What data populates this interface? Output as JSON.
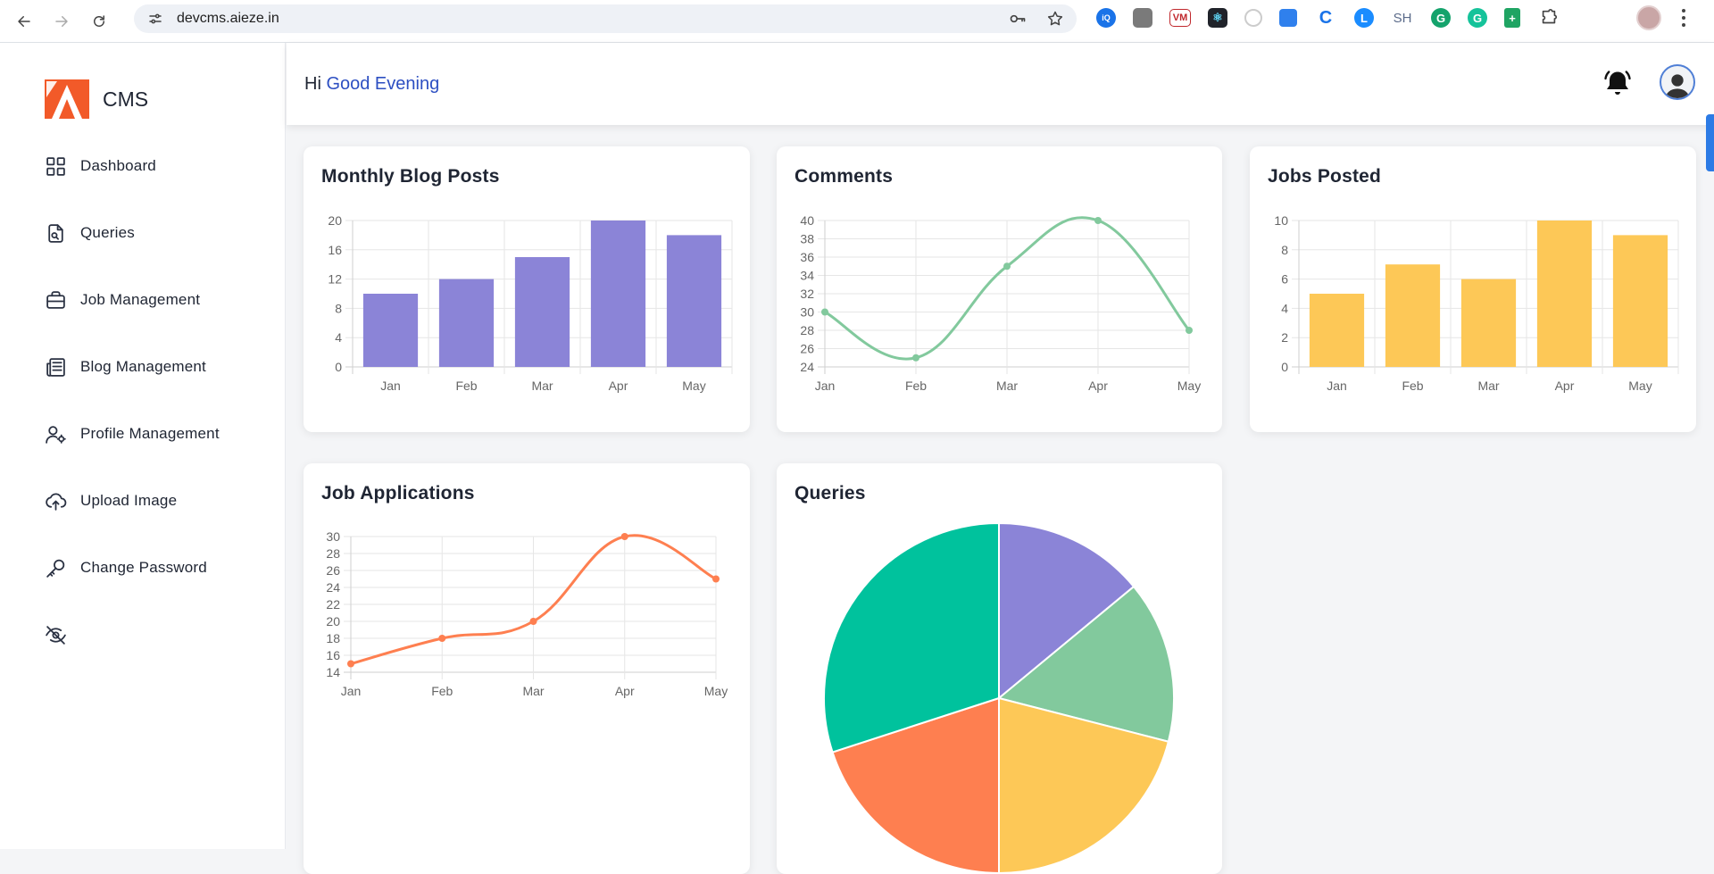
{
  "browser": {
    "url": "devcms.aieze.in",
    "extension_sh_label": "SH"
  },
  "sidebar": {
    "brand": "CMS",
    "items": [
      {
        "label": "Dashboard",
        "icon": "dashboard-grid-icon"
      },
      {
        "label": "Queries",
        "icon": "document-search-icon"
      },
      {
        "label": "Job Management",
        "icon": "briefcase-icon"
      },
      {
        "label": "Blog Management",
        "icon": "newspaper-icon"
      },
      {
        "label": "Profile Management",
        "icon": "user-gear-icon"
      },
      {
        "label": "Upload Image",
        "icon": "cloud-upload-icon"
      },
      {
        "label": "Change Password",
        "icon": "key-icon"
      },
      {
        "label": "",
        "icon": "eye-off-icon"
      }
    ]
  },
  "header": {
    "greeting_prefix": "Hi",
    "greeting": "Good Evening"
  },
  "cards": {
    "blog_posts": {
      "title": "Monthly Blog Posts"
    },
    "comments": {
      "title": "Comments"
    },
    "jobs_posted": {
      "title": "Jobs Posted"
    },
    "job_applications": {
      "title": "Job Applications"
    },
    "queries": {
      "title": "Queries"
    }
  },
  "colors": {
    "purple": "#8b84d7",
    "green": "#82c99d",
    "yellow": "#fdc857",
    "orange": "#fe7f50",
    "teal": "#00c29d",
    "accent_blue": "#2d4fc2"
  },
  "chart_data": [
    {
      "id": "blog_posts",
      "type": "bar",
      "title": "Monthly Blog Posts",
      "categories": [
        "Jan",
        "Feb",
        "Mar",
        "Apr",
        "May"
      ],
      "values": [
        10,
        12,
        15,
        20,
        18
      ],
      "ylim": [
        0,
        20
      ],
      "yticks": [
        0,
        4,
        8,
        12,
        16,
        20
      ],
      "color": "#8b84d7",
      "grid": true
    },
    {
      "id": "comments",
      "type": "line",
      "title": "Comments",
      "categories": [
        "Jan",
        "Feb",
        "Mar",
        "Apr",
        "May"
      ],
      "values": [
        30,
        25,
        35,
        40,
        28
      ],
      "ylim": [
        24,
        40
      ],
      "yticks": [
        24,
        26,
        28,
        30,
        32,
        34,
        36,
        38,
        40
      ],
      "color": "#82c99d",
      "grid": true
    },
    {
      "id": "jobs_posted",
      "type": "bar",
      "title": "Jobs Posted",
      "categories": [
        "Jan",
        "Feb",
        "Mar",
        "Apr",
        "May"
      ],
      "values": [
        5,
        7,
        6,
        10,
        9
      ],
      "ylim": [
        0,
        10
      ],
      "yticks": [
        0,
        2,
        4,
        6,
        8,
        10
      ],
      "color": "#fdc857",
      "grid": true
    },
    {
      "id": "job_applications",
      "type": "line",
      "title": "Job Applications",
      "categories": [
        "Jan",
        "Feb",
        "Mar",
        "Apr",
        "May"
      ],
      "values": [
        15,
        18,
        20,
        30,
        25
      ],
      "ylim": [
        14,
        30
      ],
      "yticks": [
        14,
        16,
        18,
        20,
        22,
        24,
        26,
        28,
        30
      ],
      "color": "#fe7f50",
      "grid": true
    },
    {
      "id": "queries",
      "type": "pie",
      "title": "Queries",
      "values": [
        14,
        15,
        21,
        20,
        30
      ],
      "colors": [
        "#8b84d7",
        "#82c99d",
        "#fdc857",
        "#fe7f50",
        "#00c29d"
      ]
    }
  ]
}
